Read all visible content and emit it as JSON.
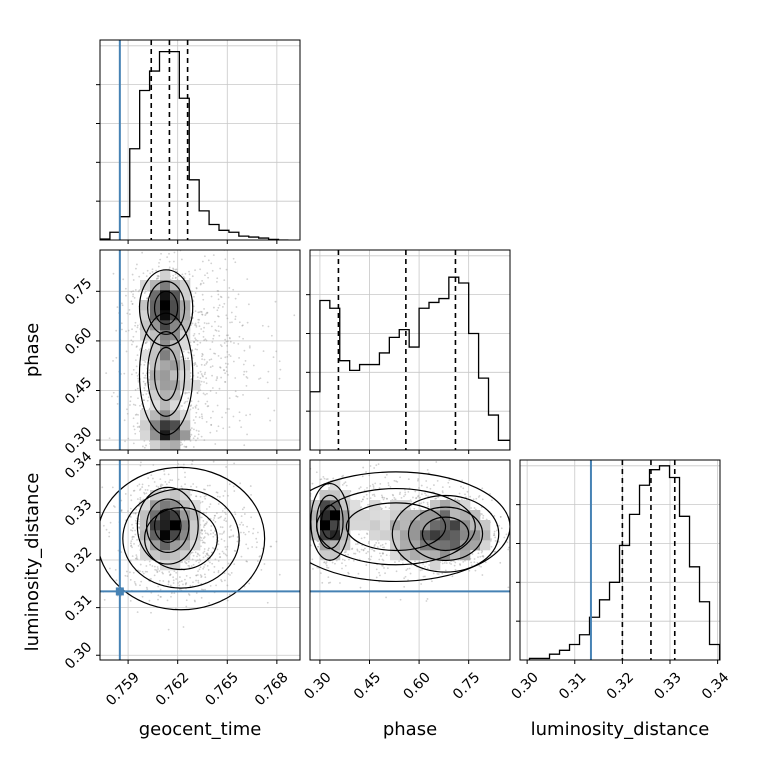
{
  "chart_data": {
    "type": "corner",
    "parameters": [
      "geocent_time",
      "phase",
      "luminosity_distance"
    ],
    "truths": {
      "geocent_time": 0.7585,
      "phase": null,
      "luminosity_distance": 0.3134
    },
    "colors": {
      "truth": "#4682b4",
      "hist": "#000000",
      "grid": "#c8c8c8",
      "scatter": "#9a9a9a"
    },
    "panels": [
      {
        "id": "hist-geocent_time",
        "kind": "hist",
        "param": "geocent_time",
        "xlim": [
          0.7573,
          0.7694
        ],
        "ylim": [
          0,
          1.03
        ],
        "xticks": [
          0.759,
          0.762,
          0.765,
          0.768
        ],
        "bin_edges": [
          0.7573,
          0.7579,
          0.7585,
          0.7591,
          0.7597,
          0.7603,
          0.7609,
          0.7615,
          0.7621,
          0.7627,
          0.7633,
          0.7639,
          0.7645,
          0.7651,
          0.7657,
          0.7663,
          0.7669,
          0.7675,
          0.7681,
          0.7687
        ],
        "counts": [
          0.005,
          0.04,
          0.12,
          0.47,
          0.77,
          0.87,
          0.97,
          0.97,
          0.73,
          0.31,
          0.15,
          0.08,
          0.05,
          0.04,
          0.02,
          0.015,
          0.01,
          0.003,
          0.0
        ],
        "quantiles": [
          0.7604,
          0.7615,
          0.7626
        ],
        "truth": 0.7585
      },
      {
        "id": "scatter-geocent_time-phase",
        "kind": "2d",
        "x": "geocent_time",
        "y": "phase",
        "xlim": [
          0.7573,
          0.7694
        ],
        "ylim": [
          0.27,
          0.875
        ],
        "xticks": [
          0.759,
          0.762,
          0.765,
          0.768
        ],
        "yticks": [
          0.3,
          0.45,
          0.6,
          0.75
        ],
        "ytick_labels": [
          "0.30",
          "0.45",
          "0.60",
          "0.75"
        ],
        "truth_x": 0.7585,
        "truth_y": null
      },
      {
        "id": "scatter-geocent_time-luminosity_distance",
        "kind": "2d",
        "x": "geocent_time",
        "y": "luminosity_distance",
        "xlim": [
          0.7573,
          0.7694
        ],
        "ylim": [
          0.299,
          0.341
        ],
        "xticks": [
          0.759,
          0.762,
          0.765,
          0.768
        ],
        "xtick_labels": [
          "0.759",
          "0.762",
          "0.765",
          "0.768"
        ],
        "yticks": [
          0.3,
          0.31,
          0.32,
          0.33,
          0.34
        ],
        "ytick_labels": [
          "0.30",
          "0.31",
          "0.32",
          "0.33",
          "0.34"
        ],
        "truth_x": 0.7585,
        "truth_y": 0.3134
      },
      {
        "id": "hist-phase",
        "kind": "hist",
        "param": "phase",
        "xlim": [
          0.27,
          0.875
        ],
        "ylim": [
          0,
          1.06
        ],
        "xticks": [
          0.3,
          0.45,
          0.6,
          0.75
        ],
        "bin_edges": [
          0.27,
          0.3,
          0.33,
          0.36,
          0.39,
          0.42,
          0.45,
          0.48,
          0.51,
          0.54,
          0.57,
          0.6,
          0.63,
          0.66,
          0.69,
          0.72,
          0.75,
          0.78,
          0.81,
          0.84,
          0.875
        ],
        "counts": [
          0.3,
          0.77,
          0.73,
          0.46,
          0.41,
          0.44,
          0.44,
          0.5,
          0.58,
          0.62,
          0.53,
          0.73,
          0.76,
          0.78,
          0.89,
          0.86,
          0.6,
          0.37,
          0.18,
          0.05
        ],
        "quantiles": [
          0.356,
          0.56,
          0.71
        ],
        "truth": null
      },
      {
        "id": "scatter-phase-luminosity_distance",
        "kind": "2d",
        "x": "phase",
        "y": "luminosity_distance",
        "xlim": [
          0.27,
          0.875
        ],
        "ylim": [
          0.299,
          0.341
        ],
        "xticks": [
          0.3,
          0.45,
          0.6,
          0.75
        ],
        "xtick_labels": [
          "0.30",
          "0.45",
          "0.60",
          "0.75"
        ],
        "truth_x": null,
        "truth_y": 0.3134
      },
      {
        "id": "hist-luminosity_distance",
        "kind": "hist",
        "param": "luminosity_distance",
        "xlim": [
          0.2985,
          0.3405
        ],
        "ylim": [
          0,
          1.06
        ],
        "xticks": [
          0.3,
          0.31,
          0.32,
          0.33,
          0.34
        ],
        "xtick_labels": [
          "0.30",
          "0.31",
          "0.32",
          "0.33",
          "0.34"
        ],
        "bin_edges": [
          0.3005,
          0.3026,
          0.3047,
          0.3068,
          0.3089,
          0.311,
          0.3131,
          0.3152,
          0.3173,
          0.3194,
          0.3215,
          0.3236,
          0.3257,
          0.3278,
          0.3299,
          0.332,
          0.3341,
          0.3362,
          0.3383,
          0.3404
        ],
        "counts": [
          0.008,
          0.008,
          0.03,
          0.05,
          0.08,
          0.13,
          0.22,
          0.31,
          0.4,
          0.59,
          0.75,
          0.9,
          0.98,
          1.0,
          0.94,
          0.74,
          0.48,
          0.3,
          0.08
        ],
        "quantiles": [
          0.32,
          0.326,
          0.331
        ],
        "truth": 0.3134
      }
    ],
    "axis_labels": {
      "x": [
        "geocent_time",
        "phase",
        "luminosity_distance"
      ],
      "y": [
        "phase",
        "luminosity_distance"
      ]
    }
  }
}
